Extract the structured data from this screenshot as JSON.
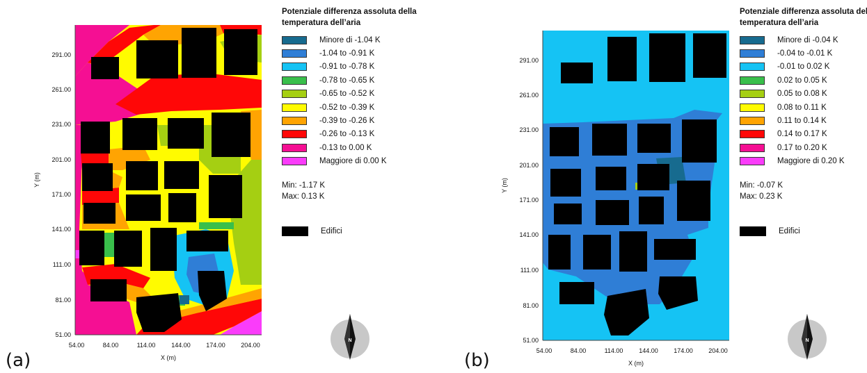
{
  "figure": {
    "panels": [
      {
        "id": "a",
        "panel_label": "(a)",
        "legend_title": "Potenziale differenza assoluta della temperatura dell’aria",
        "legend_items": [
          {
            "label": "Minore di -1.04 K",
            "color": "#176b8f"
          },
          {
            "label": "-1.04 to -0.91 K",
            "color": "#2f7ed6"
          },
          {
            "label": "-0.91 to -0.78 K",
            "color": "#15c3f4"
          },
          {
            "label": "-0.78 to -0.65 K",
            "color": "#39bf4b"
          },
          {
            "label": "-0.65 to -0.52 K",
            "color": "#a5cf12"
          },
          {
            "label": "-0.52 to -0.39 K",
            "color": "#fffb00"
          },
          {
            "label": "-0.39 to -0.26 K",
            "color": "#ffa402"
          },
          {
            "label": "-0.26 to -0.13 K",
            "color": "#ff0707"
          },
          {
            "label": "-0.13 to 0.00 K",
            "color": "#f50f93"
          },
          {
            "label": "Maggiore di 0.00 K",
            "color": "#fa3cfa"
          }
        ],
        "stats": {
          "min": "Min: -1.17 K",
          "max": "Max: 0.13 K"
        },
        "buildings_label": "Edifici",
        "x_axis": {
          "title": "X (m)",
          "ticks": [
            "54.00",
            "84.00",
            "114.00",
            "144.00",
            "174.00",
            "204.00"
          ]
        },
        "y_axis": {
          "title": "Y (m)",
          "ticks": [
            "51.00",
            "81.00",
            "111.00",
            "141.00",
            "171.00",
            "201.00",
            "231.00",
            "261.00",
            "291.00"
          ]
        },
        "north_label": "N",
        "background_color": "#fffb00",
        "building_color": "#000000"
      },
      {
        "id": "b",
        "panel_label": "(b)",
        "legend_title": "Potenziale differenza assoluta della temperatura dell’aria",
        "legend_items": [
          {
            "label": "Minore di -0.04 K",
            "color": "#176b8f"
          },
          {
            "label": "-0.04 to -0.01 K",
            "color": "#2f7ed6"
          },
          {
            "label": "-0.01 to 0.02 K",
            "color": "#15c3f4"
          },
          {
            "label": "0.02 to 0.05 K",
            "color": "#39bf4b"
          },
          {
            "label": "0.05 to 0.08 K",
            "color": "#a5cf12"
          },
          {
            "label": "0.08 to 0.11 K",
            "color": "#fffb00"
          },
          {
            "label": "0.11 to 0.14 K",
            "color": "#ffa402"
          },
          {
            "label": "0.14 to 0.17 K",
            "color": "#ff0707"
          },
          {
            "label": "0.17 to 0.20 K",
            "color": "#f50f93"
          },
          {
            "label": "Maggiore di 0.20 K",
            "color": "#fa3cfa"
          }
        ],
        "stats": {
          "min": "Min: -0.07 K",
          "max": "Max: 0.23 K"
        },
        "buildings_label": "Edifici",
        "x_axis": {
          "title": "X (m)",
          "ticks": [
            "54.00",
            "84.00",
            "114.00",
            "144.00",
            "174.00",
            "204.00"
          ]
        },
        "y_axis": {
          "title": "Y (m)",
          "ticks": [
            "51.00",
            "81.00",
            "111.00",
            "141.00",
            "171.00",
            "201.00",
            "231.00",
            "261.00",
            "291.00"
          ]
        },
        "north_label": "N",
        "background_color": "#15c3f4",
        "building_color": "#000000"
      }
    ]
  }
}
